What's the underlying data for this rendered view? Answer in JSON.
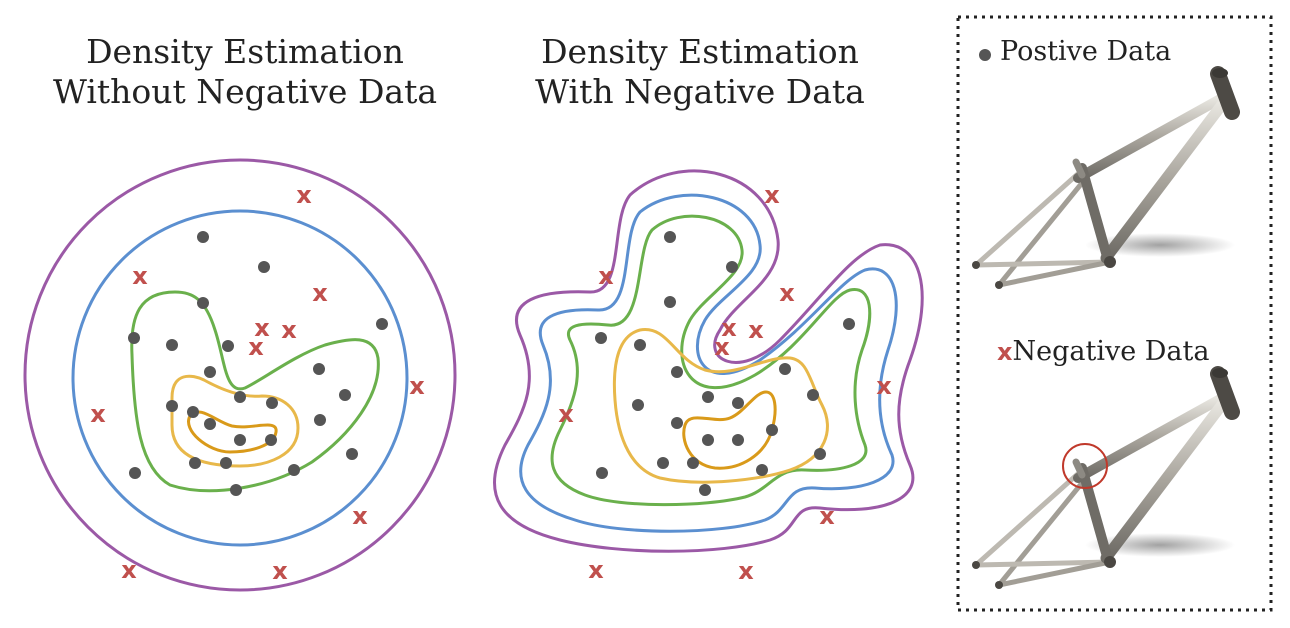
{
  "left_panel": {
    "title_line1": "Density Estimation",
    "title_line2": "Without Negative Data"
  },
  "right_panel": {
    "title_line1": "Density Estimation",
    "title_line2": "With Negative Data"
  },
  "legend": {
    "positive_label": "Postive Data",
    "negative_label": "Negative Data",
    "negative_marker": "x"
  },
  "colors": {
    "positive_point": "#555555",
    "negative_marker": "#c0504d",
    "contour_outer": "#9b59a6",
    "contour_second": "#5b8fd0",
    "contour_third": "#6ab04c",
    "contour_fourth": "#e8b84a",
    "contour_inner": "#d99a1a",
    "legend_border": "#222222",
    "defect_circle": "#c0392b",
    "frame_tube": "#9a968e"
  },
  "icons": [
    "bike-frame-icon",
    "defect-circle-icon"
  ]
}
